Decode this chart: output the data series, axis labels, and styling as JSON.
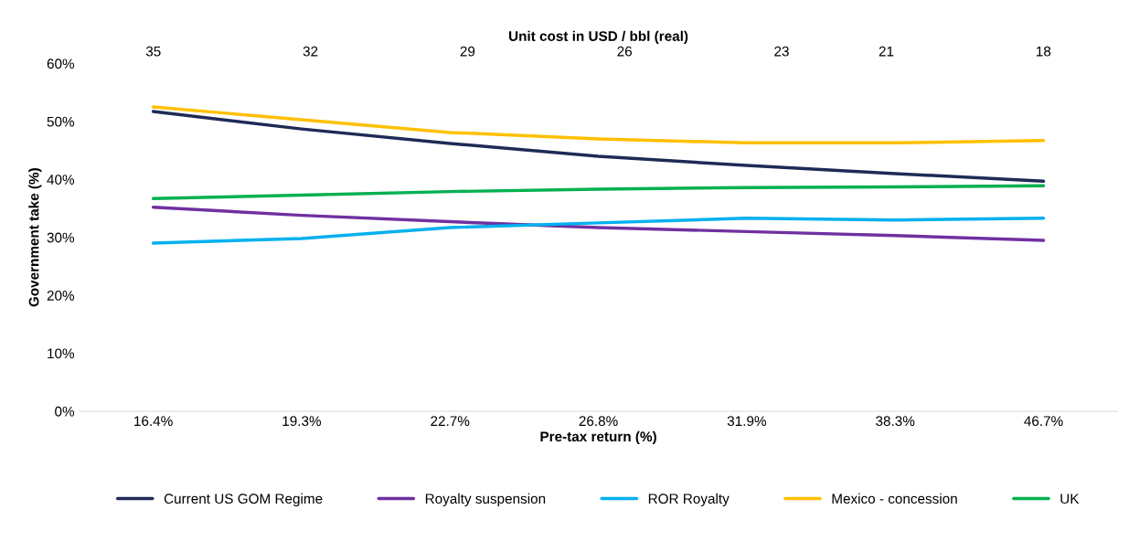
{
  "chart_data": {
    "type": "line",
    "xlabel": "Pre-tax return (%)",
    "ylabel": "Government take (%)",
    "x2label": "Unit cost in USD / bbl (real)",
    "categories": [
      "16.4%",
      "19.3%",
      "22.7%",
      "26.8%",
      "31.9%",
      "38.3%",
      "46.7%"
    ],
    "x2lim": [
      36.42,
      16.58
    ],
    "x2ticks": [
      35,
      32,
      29,
      26,
      23,
      21,
      18
    ],
    "ylim": [
      0,
      60
    ],
    "yticks": [
      {
        "value": 0,
        "label": "0%"
      },
      {
        "value": 10,
        "label": "10%"
      },
      {
        "value": 20,
        "label": "20%"
      },
      {
        "value": 30,
        "label": "30%"
      },
      {
        "value": 40,
        "label": "40%"
      },
      {
        "value": 50,
        "label": "50%"
      },
      {
        "value": 60,
        "label": "60%"
      }
    ],
    "series": [
      {
        "name": "Current US GOM Regime",
        "color": "#1f2a56",
        "values": [
          51.7,
          48.7,
          46.2,
          44.0,
          42.4,
          41.0,
          39.7
        ]
      },
      {
        "name": "Royalty suspension",
        "color": "#7030a0",
        "values": [
          35.2,
          33.8,
          32.7,
          31.7,
          31.0,
          30.3,
          29.5
        ]
      },
      {
        "name": "ROR Royalty",
        "color": "#00b0f0",
        "values": [
          29.0,
          29.8,
          31.7,
          32.5,
          33.3,
          33.0,
          33.3
        ]
      },
      {
        "name": "Mexico - concession",
        "color": "#ffc000",
        "values": [
          52.5,
          50.3,
          48.1,
          47.0,
          46.3,
          46.3,
          46.7
        ]
      },
      {
        "name": "UK",
        "color": "#00b050",
        "values": [
          36.7,
          37.3,
          37.9,
          38.3,
          38.6,
          38.7,
          38.9
        ]
      }
    ],
    "legend": "bottom",
    "grid": false,
    "marker": "none",
    "line_style": "solid"
  }
}
